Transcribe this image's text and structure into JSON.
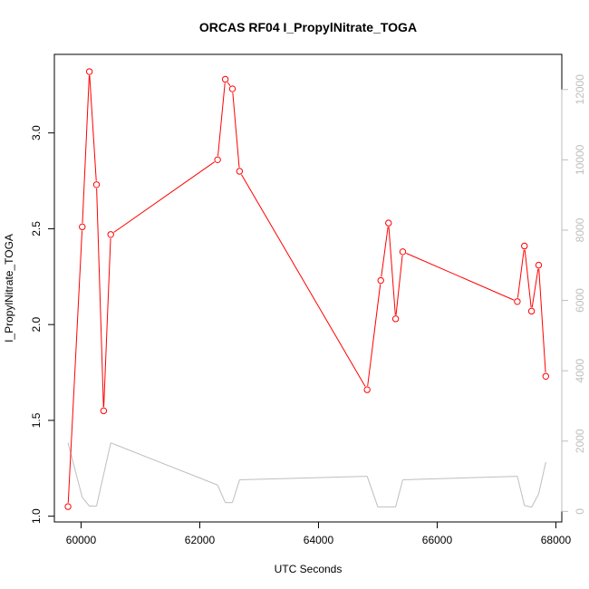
{
  "chart_data": {
    "type": "line",
    "title": "ORCAS RF04 I_PropylNitrate_TOGA",
    "xlabel": "UTC Seconds",
    "ylabel": "I_PropylNitrate_TOGA",
    "xlim": [
      59550,
      68100
    ],
    "ylim": [
      0.97,
      3.41
    ],
    "y2lim": [
      -300,
      13000
    ],
    "x_ticks": [
      60000,
      62000,
      64000,
      66000,
      68000
    ],
    "x_tick_labels": [
      "60000",
      "62000",
      "64000",
      "66000",
      "68000"
    ],
    "y_ticks": [
      1.0,
      1.5,
      2.0,
      2.5,
      3.0
    ],
    "y_tick_labels": [
      "1.0",
      "1.5",
      "2.0",
      "2.5",
      "3.0"
    ],
    "y2_ticks": [
      0,
      2000,
      4000,
      6000,
      8000,
      10000,
      12000
    ],
    "y2_tick_labels": [
      "0",
      "2000",
      "4000",
      "6000",
      "8000",
      "10000",
      "12000"
    ],
    "grid": false,
    "series": [
      {
        "color": "#ff0000",
        "axis": "left",
        "marker": "open-circle",
        "x": [
          59780,
          60020,
          60140,
          60260,
          60380,
          60500,
          62300,
          62430,
          62550,
          62670,
          64820,
          65050,
          65180,
          65300,
          65420,
          67350,
          67470,
          67590,
          67710,
          67830
        ],
        "y": [
          1.05,
          2.51,
          3.32,
          2.73,
          1.55,
          2.47,
          2.86,
          3.28,
          3.23,
          2.8,
          1.66,
          2.23,
          2.53,
          2.03,
          2.38,
          2.12,
          2.41,
          2.07,
          2.31,
          1.73
        ]
      },
      {
        "color": "#bebebe",
        "axis": "right",
        "marker": "none",
        "x": [
          59780,
          60020,
          60140,
          60260,
          60500,
          62300,
          62430,
          62550,
          62670,
          64820,
          65000,
          65300,
          65420,
          67350,
          67470,
          67590,
          67710,
          67830
        ],
        "y": [
          1950,
          400,
          150,
          150,
          1950,
          750,
          250,
          250,
          900,
          1000,
          130,
          130,
          900,
          1000,
          170,
          120,
          500,
          1400
        ]
      }
    ]
  }
}
